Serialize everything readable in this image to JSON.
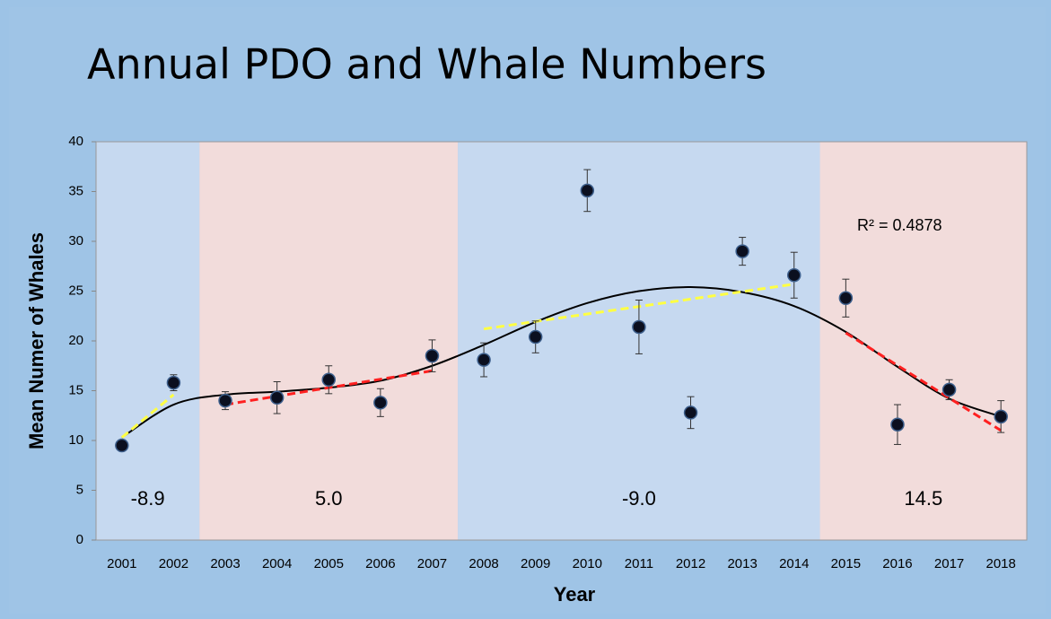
{
  "chart_data": {
    "type": "scatter",
    "title": "Annual PDO and Whale Numbers",
    "x_label": "Year",
    "y_label": "Mean Numer of Whales",
    "categories": [
      "2001",
      "2002",
      "2003",
      "2004",
      "2005",
      "2006",
      "2007",
      "2008",
      "2009",
      "2010",
      "2011",
      "2012",
      "2013",
      "2014",
      "2015",
      "2016",
      "2017",
      "2018"
    ],
    "series": [
      {
        "name": "Whales",
        "color": "#0b0f1f",
        "values": [
          9.5,
          15.8,
          14.0,
          14.3,
          16.1,
          13.8,
          18.5,
          18.1,
          20.4,
          35.1,
          21.4,
          12.8,
          29.0,
          26.6,
          24.3,
          11.6,
          15.1,
          12.4
        ],
        "errors": [
          0.3,
          0.8,
          0.9,
          1.6,
          1.4,
          1.4,
          1.6,
          1.7,
          1.6,
          2.1,
          2.7,
          1.6,
          1.4,
          2.3,
          1.9,
          2.0,
          1.0,
          1.6
        ]
      }
    ],
    "trend": {
      "label": "R² = 0.4878",
      "color": "#000000",
      "values": [
        10.3,
        13.6,
        14.6,
        14.9,
        15.3,
        16.0,
        17.5,
        19.6,
        21.9,
        23.8,
        25.0,
        25.4,
        24.9,
        23.5,
        20.9,
        17.4,
        14.2,
        12.4
      ]
    },
    "segments": [
      {
        "color": "#ffff44",
        "categories": [
          "2001",
          "2002"
        ],
        "values": [
          10.3,
          14.6
        ]
      },
      {
        "color": "#ff2020",
        "categories": [
          "2003",
          "2007"
        ],
        "values": [
          13.6,
          17.0
        ]
      },
      {
        "color": "#ffff44",
        "categories": [
          "2008",
          "2014"
        ],
        "values": [
          21.2,
          25.7
        ]
      },
      {
        "color": "#ff2020",
        "categories": [
          "2015",
          "2018"
        ],
        "values": [
          20.8,
          11.0
        ]
      }
    ],
    "regions": [
      {
        "label": "-8.9",
        "start": "2001",
        "end": "2002",
        "color": "#c6d9f0"
      },
      {
        "label": "5.0",
        "start": "2003",
        "end": "2007",
        "color": "#f2dcdb"
      },
      {
        "label": "-9.0",
        "start": "2008",
        "end": "2014",
        "color": "#c6d9f0"
      },
      {
        "label": "14.5",
        "start": "2015",
        "end": "2018",
        "color": "#f2dcdb"
      }
    ],
    "ylim": [
      0,
      40
    ],
    "yticks": [
      0,
      5,
      10,
      15,
      20,
      25,
      30,
      35,
      40
    ],
    "grid": false
  }
}
